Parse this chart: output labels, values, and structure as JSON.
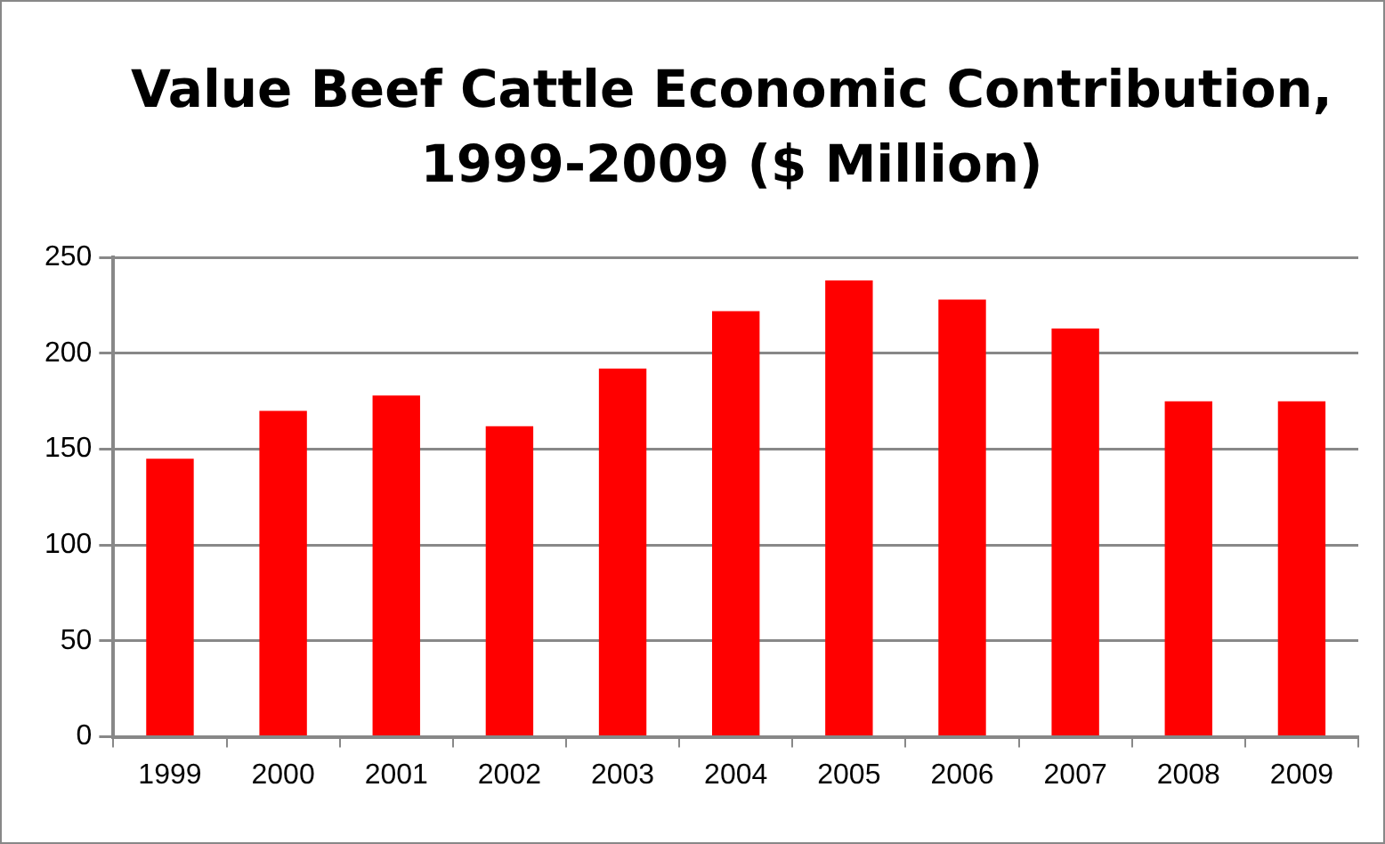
{
  "chart_data": {
    "type": "bar",
    "title": "Value Beef Cattle Economic Contribution, 1999-2009 ($ Million)",
    "categories": [
      "1999",
      "2000",
      "2001",
      "2002",
      "2003",
      "2004",
      "2005",
      "2006",
      "2007",
      "2008",
      "2009"
    ],
    "values": [
      145,
      170,
      178,
      162,
      192,
      222,
      238,
      228,
      213,
      175,
      175
    ],
    "color": "#ff0000",
    "ylim": [
      0,
      250
    ],
    "yticks": [
      0,
      50,
      100,
      150,
      200,
      250
    ],
    "grid": "y",
    "legend": false
  }
}
